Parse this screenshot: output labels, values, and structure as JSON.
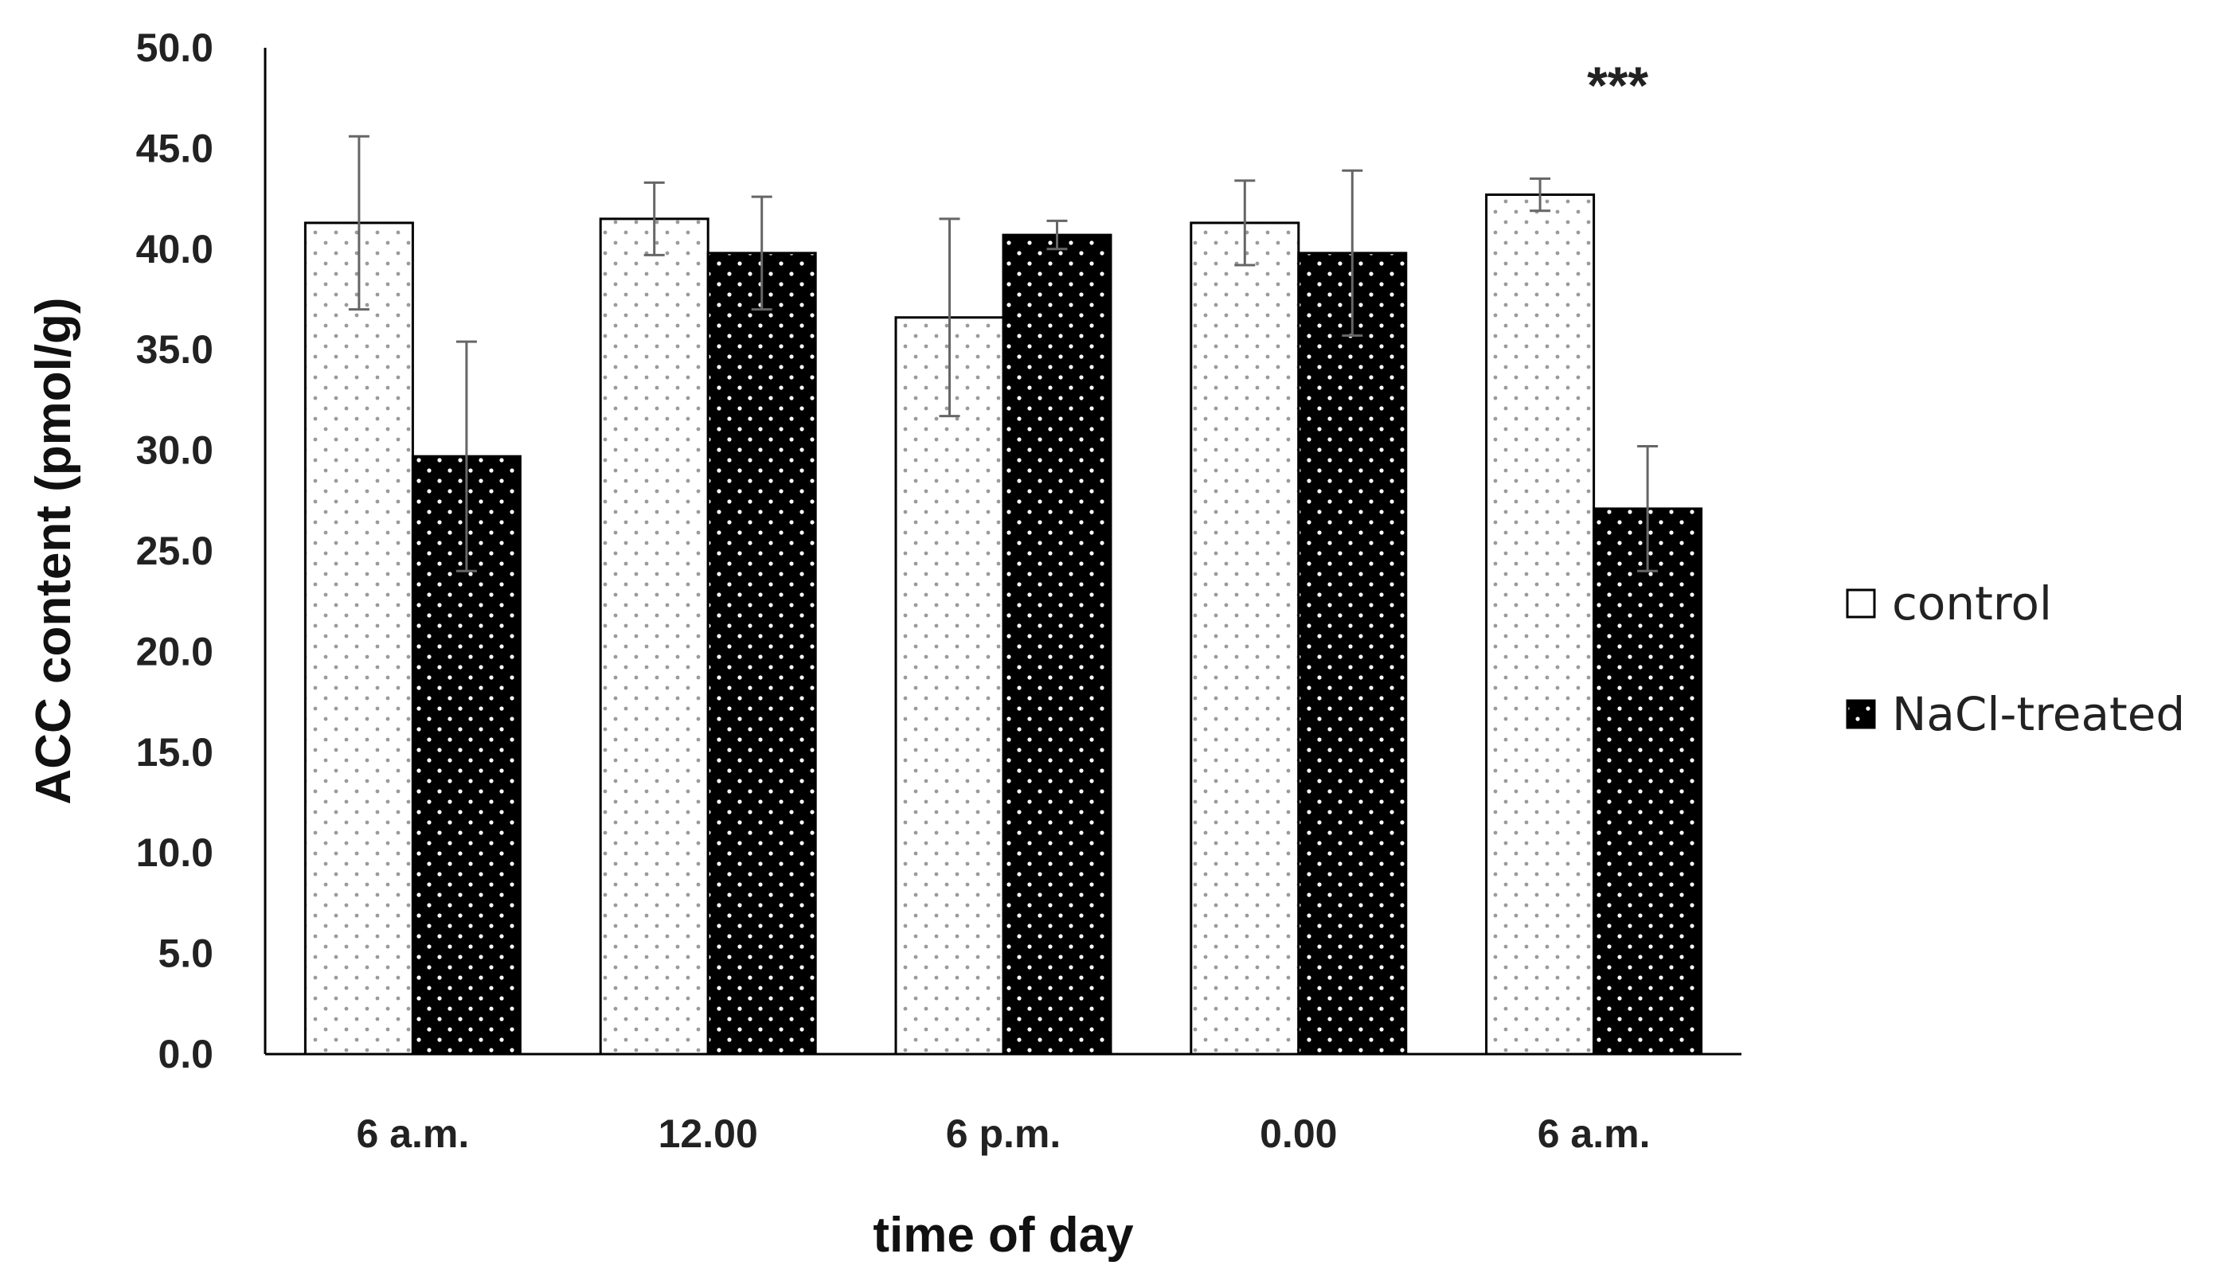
{
  "chart_data": {
    "type": "bar",
    "title": "",
    "xlabel": "time of day",
    "ylabel": "ACC content (pmol/g)",
    "ylim": [
      0,
      50
    ],
    "yticks": [
      "0.0",
      "5.0",
      "10.0",
      "15.0",
      "20.0",
      "25.0",
      "30.0",
      "35.0",
      "40.0",
      "45.0",
      "50.0"
    ],
    "categories": [
      "6 a.m.",
      "12.00",
      "6 p.m.",
      "0.00",
      "6 a.m."
    ],
    "series": [
      {
        "name": "control",
        "values": [
          41.3,
          41.5,
          36.6,
          41.3,
          42.7
        ],
        "errors": [
          4.3,
          1.8,
          4.9,
          2.1,
          0.8
        ]
      },
      {
        "name": "NaCl-treated",
        "values": [
          29.7,
          39.8,
          40.7,
          39.8,
          27.1
        ],
        "errors": [
          5.7,
          2.8,
          0.7,
          4.1,
          3.1
        ]
      }
    ],
    "annotations": [
      {
        "category_index": 4,
        "text": "***"
      }
    ],
    "legend_position": "right",
    "grid": false
  },
  "colors": {
    "control_fill": "#ffffff",
    "control_dot": "#9a9a9a",
    "nacl_fill": "#000000",
    "nacl_dot": "#ffffff",
    "axis": "#000000",
    "error_bar": "#666666"
  }
}
